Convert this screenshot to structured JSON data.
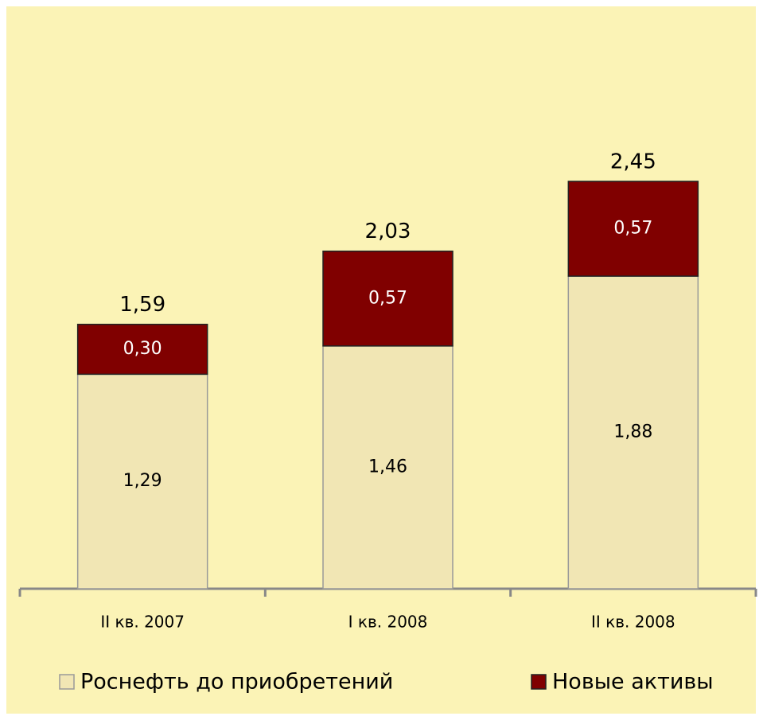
{
  "chart_data": {
    "type": "stacked-bar",
    "categories": [
      "II кв. 2007",
      "I кв. 2008",
      "II кв. 2008"
    ],
    "series": [
      {
        "name": "Роснефть до приобретений",
        "color": "#f1e6b4",
        "values": [
          1.29,
          1.46,
          1.88
        ],
        "value_labels": [
          "1,29",
          "1,46",
          "1,88"
        ]
      },
      {
        "name": "Новые активы",
        "color": "#800000",
        "values": [
          0.3,
          0.57,
          0.57
        ],
        "value_labels": [
          "0,30",
          "0,57",
          "0,57"
        ]
      }
    ],
    "totals": [
      1.59,
      2.03,
      2.45
    ],
    "total_labels": [
      "1,59",
      "2,03",
      "2,45"
    ]
  }
}
